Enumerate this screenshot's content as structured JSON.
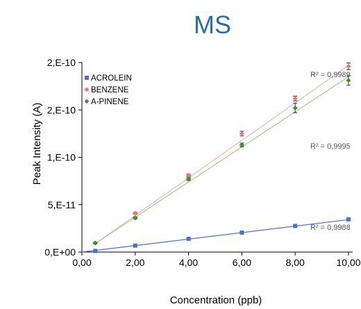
{
  "chart_data": {
    "type": "scatter",
    "title": "MS",
    "xlabel": "Concentration (ppb)",
    "ylabel": "Peak Intensity (A)",
    "xlim": [
      0,
      10
    ],
    "ylim": [
      0,
      2e-10
    ],
    "x_ticks": [
      {
        "value": 0,
        "label": "0,00"
      },
      {
        "value": 2,
        "label": "2,00"
      },
      {
        "value": 4,
        "label": "4,00"
      },
      {
        "value": 6,
        "label": "6,00"
      },
      {
        "value": 8,
        "label": "8,00"
      },
      {
        "value": 10,
        "label": "10,00"
      }
    ],
    "y_ticks": [
      {
        "value": 0,
        "label": "0,E+00"
      },
      {
        "value": 5e-11,
        "label": "5,E-11"
      },
      {
        "value": 1e-10,
        "label": "1,E-10"
      },
      {
        "value": 1.5e-10,
        "label": "2,E-10"
      },
      {
        "value": 2e-10,
        "label": "2,E-10"
      }
    ],
    "legend_position": "top-left",
    "grid": false,
    "trendlines": true,
    "series": [
      {
        "name": "ACROLEIN",
        "color": "#4a6fd1",
        "line_color": "#4a6fd1",
        "marker": "square",
        "x": [
          0.5,
          2,
          4,
          6,
          8,
          10
        ],
        "y": [
          1.2e-12,
          6.8e-12,
          1.4e-11,
          2.05e-11,
          2.75e-11,
          3.45e-11
        ],
        "error": [
          0,
          0,
          0,
          0,
          0,
          0
        ],
        "r2_label": "R² = 0,9988",
        "fit": {
          "x0": 0,
          "y0": 0,
          "x1": 10,
          "y1": 3.42e-11
        }
      },
      {
        "name": "BENZENE",
        "color": "#e8797a",
        "line_color": "#f2b8b8",
        "marker": "diamond",
        "x": [
          0.5,
          2,
          4,
          6,
          8,
          10
        ],
        "y": [
          9.5e-12,
          4.1e-11,
          8.1e-11,
          1.25e-10,
          1.62e-10,
          1.96e-10
        ],
        "error": [
          8e-13,
          1e-12,
          1.2e-12,
          2.5e-12,
          2.5e-12,
          3.5e-12
        ],
        "r2_label": "R² = 0,9989",
        "fit": {
          "x0": 0.5,
          "y0": 9e-12,
          "x1": 10,
          "y1": 1.97e-10
        }
      },
      {
        "name": "A-PINENE",
        "color": "#4e8a2e",
        "line_color": "#a9c98d",
        "marker": "diamond",
        "x": [
          0.5,
          2,
          4,
          6,
          8,
          10
        ],
        "y": [
          9.5e-12,
          3.6e-11,
          7.7e-11,
          1.13e-10,
          1.52e-10,
          1.81e-10
        ],
        "error": [
          8e-13,
          1e-12,
          1.5e-12,
          2e-12,
          5e-12,
          5e-12
        ],
        "r2_label": "R² = 0,9995",
        "fit": {
          "x0": 0.5,
          "y0": 9e-12,
          "x1": 10,
          "y1": 1.85e-10
        }
      }
    ]
  }
}
